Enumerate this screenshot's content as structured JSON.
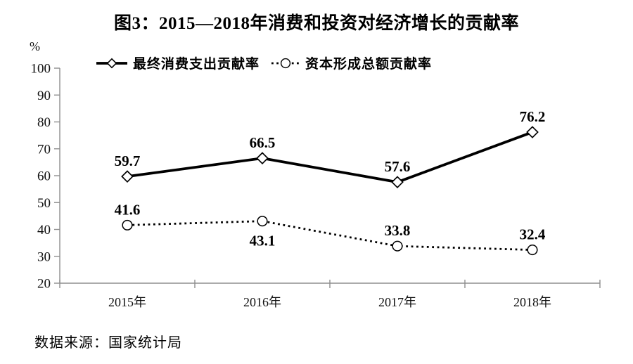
{
  "figure": {
    "source": "数据来源：国家统计局"
  },
  "chart_data": {
    "type": "line",
    "title": "图3：2015—2018年消费和投资对经济增长的贡献率",
    "xlabel": "",
    "ylabel": "%",
    "categories": [
      "2015年",
      "2016年",
      "2017年",
      "2018年"
    ],
    "series": [
      {
        "name": "最终消费支出贡献率",
        "values": [
          59.7,
          66.5,
          57.6,
          76.2
        ],
        "marker": "diamond",
        "line_style": "solid",
        "label_positions": [
          "above",
          "above",
          "above",
          "above"
        ]
      },
      {
        "name": "资本形成总额贡献率",
        "values": [
          41.6,
          43.1,
          33.8,
          32.4
        ],
        "marker": "circle",
        "line_style": "dotted",
        "label_positions": [
          "above",
          "below",
          "above",
          "above"
        ]
      }
    ],
    "ylim": [
      20,
      100
    ],
    "ytick_step": 10,
    "grid": false,
    "legend_position": "top",
    "colors": {
      "line": "#000000",
      "axis": "#8f8f8f",
      "text": "#000000"
    }
  }
}
